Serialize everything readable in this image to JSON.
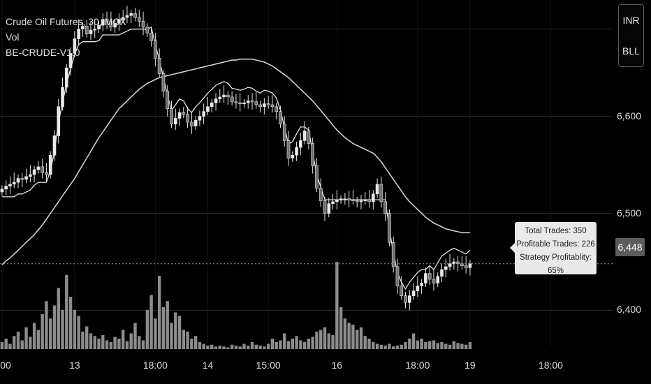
{
  "legend": {
    "title": "Crude Oil Futures, 30, MCX",
    "volume_label": "Vol",
    "strategy_label": "BE-CRUDE-V1.0"
  },
  "currency_box": {
    "line1": "INR",
    "line2": "BLL"
  },
  "last_price": "6,448",
  "stats_box": {
    "total_trades": "Total Trades: 350",
    "profitable_trades": "Profitable Trades: 226",
    "profitability": "Strategy Profitablity: 65%"
  },
  "colors": {
    "background": "#000000",
    "candle": "#e8e8e8",
    "volume": "#8c8c8c",
    "ma_line": "#d0d0d0",
    "grid": "#2a2a2a"
  },
  "chart_data": {
    "type": "candlestick",
    "title": "Crude Oil Futures, 30, MCX",
    "ylim": [
      6360,
      6720
    ],
    "y_ticks": [
      {
        "value": 6600,
        "label": "6,600"
      },
      {
        "value": 6500,
        "label": "6,500"
      },
      {
        "value": 6400,
        "label": "6,400"
      }
    ],
    "x_ticks": [
      {
        "label": "00",
        "bar": 0
      },
      {
        "label": "13",
        "bar": 18
      },
      {
        "label": "18:00",
        "bar": 38
      },
      {
        "label": "14",
        "bar": 51
      },
      {
        "label": "15:00",
        "bar": 66
      },
      {
        "label": "16",
        "bar": 83
      },
      {
        "label": "18:00",
        "bar": 103
      },
      {
        "label": "19",
        "bar": 116
      },
      {
        "label": "18:00",
        "bar": 136
      }
    ],
    "x_total_bars": 152,
    "last_price": 6448,
    "close": [
      6525,
      6528,
      6530,
      6532,
      6536,
      6535,
      6538,
      6540,
      6545,
      6548,
      6542,
      6540,
      6560,
      6580,
      6610,
      6630,
      6650,
      6665,
      6680,
      6690,
      6693,
      6685,
      6689,
      6690,
      6694,
      6700,
      6698,
      6692,
      6696,
      6700,
      6702,
      6704,
      6706,
      6702,
      6698,
      6692,
      6686,
      6678,
      6660,
      6644,
      6626,
      6608,
      6592,
      6598,
      6604,
      6602,
      6594,
      6590,
      6596,
      6600,
      6605,
      6610,
      6614,
      6618,
      6620,
      6622,
      6620,
      6615,
      6614,
      6613,
      6614,
      6616,
      6615,
      6612,
      6610,
      6613,
      6612,
      6610,
      6605,
      6592,
      6575,
      6557,
      6560,
      6568,
      6575,
      6585,
      6572,
      6549,
      6526,
      6513,
      6500,
      6510,
      6512,
      6514,
      6515,
      6515,
      6514,
      6513,
      6512,
      6513,
      6514,
      6512,
      6520,
      6530,
      6512,
      6500,
      6470,
      6445,
      6425,
      6415,
      6408,
      6415,
      6420,
      6425,
      6428,
      6438,
      6432,
      6428,
      6435,
      6442,
      6445,
      6448,
      6450,
      6448,
      6446,
      6444,
      6448
    ],
    "ma_long": [
      6447,
      6451,
      6454,
      6458,
      6462,
      6466,
      6470,
      6474,
      6478,
      6483,
      6488,
      6494,
      6500,
      6506,
      6512,
      6518,
      6524,
      6530,
      6536,
      6543,
      6550,
      6557,
      6564,
      6571,
      6578,
      6584,
      6590,
      6596,
      6602,
      6608,
      6612,
      6616,
      6620,
      6624,
      6628,
      6631,
      6634,
      6636,
      6638,
      6640,
      6641,
      6642,
      6643,
      6644,
      6645,
      6646,
      6647,
      6648,
      6649,
      6650,
      6651,
      6652,
      6653,
      6654,
      6655,
      6656,
      6657,
      6658,
      6658,
      6659,
      6659,
      6659,
      6659,
      6658,
      6657,
      6656,
      6654,
      6652,
      6649,
      6646,
      6643,
      6640,
      6636,
      6632,
      6628,
      6624,
      6620,
      6616,
      6611,
      6606,
      6601,
      6596,
      6591,
      6586,
      6582,
      6578,
      6575,
      6572,
      6570,
      6568,
      6566,
      6564,
      6562,
      6558,
      6553,
      6547,
      6541,
      6535,
      6529,
      6523,
      6517,
      6512,
      6508,
      6504,
      6500,
      6496,
      6493,
      6490,
      6488,
      6486,
      6484,
      6483,
      6482,
      6481,
      6480,
      6480,
      6480
    ],
    "volume": [
      8,
      12,
      6,
      15,
      20,
      10,
      25,
      14,
      30,
      22,
      40,
      55,
      35,
      50,
      70,
      45,
      85,
      60,
      45,
      38,
      20,
      26,
      18,
      15,
      12,
      16,
      10,
      8,
      14,
      12,
      22,
      9,
      18,
      30,
      15,
      10,
      45,
      62,
      35,
      84,
      48,
      55,
      30,
      42,
      38,
      22,
      20,
      12,
      15,
      8,
      6,
      4,
      5,
      3,
      4,
      3,
      2,
      5,
      4,
      3,
      6,
      4,
      8,
      5,
      4,
      3,
      6,
      12,
      8,
      10,
      18,
      9,
      12,
      15,
      10,
      8,
      12,
      14,
      20,
      22,
      25,
      18,
      16,
      100,
      48,
      35,
      30,
      28,
      22,
      25,
      15,
      12,
      8,
      6,
      5,
      4,
      6,
      3,
      4,
      5,
      8,
      12,
      18,
      10,
      12,
      8,
      9,
      10,
      7,
      8,
      6,
      5,
      9,
      7,
      6,
      5,
      8
    ]
  }
}
